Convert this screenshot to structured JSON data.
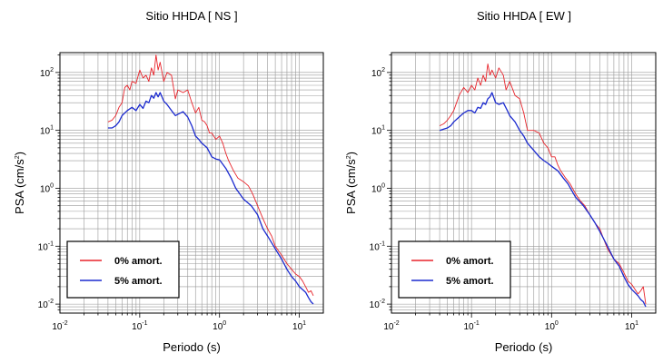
{
  "chart_data": [
    {
      "type": "line",
      "title": "Sitio HHDA [ NS ]",
      "xlabel": "Periodo (s)",
      "ylabel": "PSA (cm/s2)",
      "xscale": "log",
      "yscale": "log",
      "xlim": [
        0.01,
        20
      ],
      "ylim": [
        0.007,
        220
      ],
      "x_ticks": [
        {
          "base": "10",
          "exp": "-2",
          "value": 0.01
        },
        {
          "base": "10",
          "exp": "-1",
          "value": 0.1
        },
        {
          "base": "10",
          "exp": "0",
          "value": 1
        },
        {
          "base": "10",
          "exp": "1",
          "value": 10
        }
      ],
      "y_ticks": [
        {
          "base": "10",
          "exp": "-2",
          "value": 0.01
        },
        {
          "base": "10",
          "exp": "-1",
          "value": 0.1
        },
        {
          "base": "10",
          "exp": "0",
          "value": 1
        },
        {
          "base": "10",
          "exp": "1",
          "value": 10
        },
        {
          "base": "10",
          "exp": "2",
          "value": 100
        }
      ],
      "grid": true,
      "legend_position": "bottom-left",
      "series": [
        {
          "name": "0% amort.",
          "color": "#e8242b",
          "points": [
            [
              0.04,
              14
            ],
            [
              0.045,
              15
            ],
            [
              0.05,
              18
            ],
            [
              0.055,
              25
            ],
            [
              0.06,
              30
            ],
            [
              0.065,
              55
            ],
            [
              0.07,
              60
            ],
            [
              0.075,
              50
            ],
            [
              0.08,
              70
            ],
            [
              0.09,
              65
            ],
            [
              0.1,
              110
            ],
            [
              0.11,
              80
            ],
            [
              0.12,
              90
            ],
            [
              0.13,
              70
            ],
            [
              0.14,
              120
            ],
            [
              0.15,
              90
            ],
            [
              0.16,
              200
            ],
            [
              0.17,
              110
            ],
            [
              0.18,
              150
            ],
            [
              0.2,
              70
            ],
            [
              0.22,
              100
            ],
            [
              0.25,
              90
            ],
            [
              0.28,
              35
            ],
            [
              0.3,
              50
            ],
            [
              0.35,
              45
            ],
            [
              0.4,
              50
            ],
            [
              0.45,
              30
            ],
            [
              0.5,
              20
            ],
            [
              0.55,
              25
            ],
            [
              0.6,
              15
            ],
            [
              0.65,
              14
            ],
            [
              0.7,
              12
            ],
            [
              0.75,
              9
            ],
            [
              0.8,
              9
            ],
            [
              0.9,
              7
            ],
            [
              1,
              8
            ],
            [
              1.1,
              6
            ],
            [
              1.2,
              4
            ],
            [
              1.3,
              3
            ],
            [
              1.5,
              2
            ],
            [
              1.7,
              1.5
            ],
            [
              2,
              1.3
            ],
            [
              2.3,
              1.1
            ],
            [
              2.6,
              0.8
            ],
            [
              3,
              0.5
            ],
            [
              3.5,
              0.3
            ],
            [
              4,
              0.2
            ],
            [
              4.5,
              0.15
            ],
            [
              5,
              0.1
            ],
            [
              6,
              0.07
            ],
            [
              7,
              0.05
            ],
            [
              8,
              0.04
            ],
            [
              9,
              0.033
            ],
            [
              10,
              0.03
            ],
            [
              11,
              0.025
            ],
            [
              12,
              0.02
            ],
            [
              13,
              0.016
            ],
            [
              14,
              0.017
            ],
            [
              15,
              0.014
            ]
          ]
        },
        {
          "name": "5% amort.",
          "color": "#1b2acf",
          "points": [
            [
              0.04,
              11
            ],
            [
              0.045,
              11
            ],
            [
              0.05,
              12
            ],
            [
              0.055,
              14
            ],
            [
              0.06,
              18
            ],
            [
              0.07,
              22
            ],
            [
              0.08,
              25
            ],
            [
              0.09,
              22
            ],
            [
              0.1,
              28
            ],
            [
              0.11,
              24
            ],
            [
              0.12,
              32
            ],
            [
              0.13,
              30
            ],
            [
              0.14,
              40
            ],
            [
              0.15,
              36
            ],
            [
              0.16,
              45
            ],
            [
              0.17,
              38
            ],
            [
              0.18,
              45
            ],
            [
              0.2,
              32
            ],
            [
              0.22,
              28
            ],
            [
              0.25,
              22
            ],
            [
              0.28,
              18
            ],
            [
              0.3,
              19
            ],
            [
              0.35,
              21
            ],
            [
              0.4,
              17
            ],
            [
              0.45,
              12
            ],
            [
              0.5,
              8
            ],
            [
              0.55,
              7
            ],
            [
              0.6,
              6
            ],
            [
              0.7,
              5
            ],
            [
              0.8,
              3.5
            ],
            [
              0.9,
              3.2
            ],
            [
              1,
              3.1
            ],
            [
              1.1,
              2.6
            ],
            [
              1.2,
              2.2
            ],
            [
              1.4,
              1.5
            ],
            [
              1.6,
              1
            ],
            [
              1.8,
              0.8
            ],
            [
              2,
              0.65
            ],
            [
              2.5,
              0.5
            ],
            [
              3,
              0.35
            ],
            [
              3.5,
              0.2
            ],
            [
              4,
              0.15
            ],
            [
              5,
              0.09
            ],
            [
              6,
              0.06
            ],
            [
              7,
              0.04
            ],
            [
              8,
              0.03
            ],
            [
              9,
              0.025
            ],
            [
              10,
              0.02
            ],
            [
              12,
              0.016
            ],
            [
              13,
              0.013
            ],
            [
              14,
              0.011
            ],
            [
              15,
              0.01
            ]
          ]
        }
      ]
    },
    {
      "type": "line",
      "title": "Sitio HHDA [ EW ]",
      "xlabel": "Periodo (s)",
      "ylabel": "PSA (cm/s2)",
      "xscale": "log",
      "yscale": "log",
      "xlim": [
        0.01,
        20
      ],
      "ylim": [
        0.007,
        220
      ],
      "x_ticks": [
        {
          "base": "10",
          "exp": "-2",
          "value": 0.01
        },
        {
          "base": "10",
          "exp": "-1",
          "value": 0.1
        },
        {
          "base": "10",
          "exp": "0",
          "value": 1
        },
        {
          "base": "10",
          "exp": "1",
          "value": 10
        }
      ],
      "y_ticks": [
        {
          "base": "10",
          "exp": "-2",
          "value": 0.01
        },
        {
          "base": "10",
          "exp": "-1",
          "value": 0.1
        },
        {
          "base": "10",
          "exp": "0",
          "value": 1
        },
        {
          "base": "10",
          "exp": "1",
          "value": 10
        },
        {
          "base": "10",
          "exp": "2",
          "value": 100
        }
      ],
      "grid": true,
      "legend_position": "bottom-left",
      "series": [
        {
          "name": "0% amort.",
          "color": "#e8242b",
          "points": [
            [
              0.04,
              12
            ],
            [
              0.045,
              13
            ],
            [
              0.05,
              15
            ],
            [
              0.055,
              18
            ],
            [
              0.06,
              22
            ],
            [
              0.065,
              30
            ],
            [
              0.07,
              40
            ],
            [
              0.08,
              55
            ],
            [
              0.09,
              45
            ],
            [
              0.1,
              60
            ],
            [
              0.11,
              50
            ],
            [
              0.12,
              80
            ],
            [
              0.13,
              60
            ],
            [
              0.14,
              90
            ],
            [
              0.15,
              70
            ],
            [
              0.16,
              140
            ],
            [
              0.17,
              90
            ],
            [
              0.18,
              110
            ],
            [
              0.2,
              80
            ],
            [
              0.22,
              120
            ],
            [
              0.25,
              90
            ],
            [
              0.27,
              50
            ],
            [
              0.3,
              70
            ],
            [
              0.35,
              40
            ],
            [
              0.4,
              35
            ],
            [
              0.45,
              20
            ],
            [
              0.5,
              10
            ],
            [
              0.6,
              10
            ],
            [
              0.7,
              9
            ],
            [
              0.8,
              6
            ],
            [
              0.9,
              5
            ],
            [
              1,
              3.5
            ],
            [
              1.1,
              3.5
            ],
            [
              1.2,
              2.5
            ],
            [
              1.3,
              2
            ],
            [
              1.5,
              1.5
            ],
            [
              1.7,
              1.2
            ],
            [
              2,
              0.8
            ],
            [
              2.3,
              0.6
            ],
            [
              2.6,
              0.5
            ],
            [
              3,
              0.35
            ],
            [
              3.5,
              0.25
            ],
            [
              4,
              0.2
            ],
            [
              4.5,
              0.13
            ],
            [
              5,
              0.09
            ],
            [
              6,
              0.06
            ],
            [
              7,
              0.05
            ],
            [
              8,
              0.035
            ],
            [
              9,
              0.025
            ],
            [
              10,
              0.022
            ],
            [
              11,
              0.018
            ],
            [
              12,
              0.015
            ],
            [
              13,
              0.017
            ],
            [
              14,
              0.02
            ],
            [
              15,
              0.01
            ]
          ]
        },
        {
          "name": "5% amort.",
          "color": "#1b2acf",
          "points": [
            [
              0.04,
              10
            ],
            [
              0.045,
              10.5
            ],
            [
              0.05,
              11
            ],
            [
              0.055,
              12
            ],
            [
              0.06,
              14
            ],
            [
              0.07,
              17
            ],
            [
              0.08,
              20
            ],
            [
              0.09,
              22
            ],
            [
              0.1,
              22
            ],
            [
              0.11,
              20
            ],
            [
              0.12,
              25
            ],
            [
              0.13,
              24
            ],
            [
              0.14,
              30
            ],
            [
              0.15,
              28
            ],
            [
              0.16,
              35
            ],
            [
              0.17,
              38
            ],
            [
              0.18,
              45
            ],
            [
              0.2,
              30
            ],
            [
              0.22,
              28
            ],
            [
              0.25,
              30
            ],
            [
              0.28,
              22
            ],
            [
              0.3,
              18
            ],
            [
              0.35,
              14
            ],
            [
              0.4,
              10
            ],
            [
              0.45,
              8
            ],
            [
              0.5,
              6
            ],
            [
              0.6,
              4.5
            ],
            [
              0.7,
              3.5
            ],
            [
              0.8,
              3
            ],
            [
              0.9,
              2.7
            ],
            [
              1,
              2.4
            ],
            [
              1.2,
              2
            ],
            [
              1.4,
              1.5
            ],
            [
              1.6,
              1.2
            ],
            [
              1.8,
              0.9
            ],
            [
              2,
              0.7
            ],
            [
              2.5,
              0.5
            ],
            [
              3,
              0.35
            ],
            [
              3.5,
              0.25
            ],
            [
              4,
              0.18
            ],
            [
              5,
              0.1
            ],
            [
              6,
              0.06
            ],
            [
              7,
              0.045
            ],
            [
              8,
              0.03
            ],
            [
              9,
              0.022
            ],
            [
              10,
              0.018
            ],
            [
              12,
              0.014
            ],
            [
              13,
              0.012
            ],
            [
              14,
              0.011
            ],
            [
              15,
              0.009
            ]
          ]
        }
      ]
    }
  ]
}
